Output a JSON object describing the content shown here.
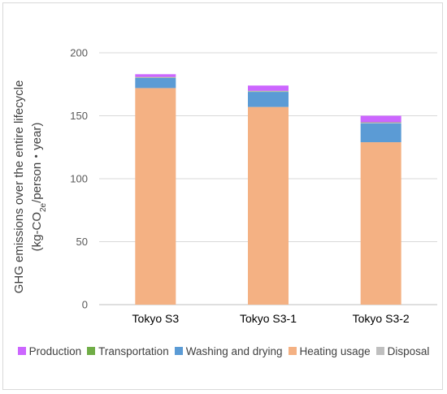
{
  "chart_data": {
    "type": "bar",
    "stacked": true,
    "categories": [
      "Tokyo S3",
      "Tokyo S3-1",
      "Tokyo S3-2"
    ],
    "series": [
      {
        "name": "Heating usage",
        "color": "#f4b183",
        "values": [
          172,
          157,
          129
        ]
      },
      {
        "name": "Washing and drying",
        "color": "#5b9bd5",
        "values": [
          8,
          12,
          15
        ]
      },
      {
        "name": "Disposal",
        "color": "#bfbfbf",
        "values": [
          0.5,
          0.5,
          0.5
        ]
      },
      {
        "name": "Transportation",
        "color": "#70ad47",
        "values": [
          0.3,
          0.3,
          0.3
        ]
      },
      {
        "name": "Production",
        "color": "#cc66ff",
        "values": [
          2.2,
          4.2,
          5.2
        ]
      }
    ],
    "legend_order": [
      "Production",
      "Transportation",
      "Washing and drying",
      "Heating usage",
      "Disposal"
    ],
    "ylim": [
      0,
      200
    ],
    "yticks": [
      0,
      50,
      100,
      150,
      200
    ],
    "ylabel_line1": "GHG emissions over the entire lifecycle",
    "ylabel_line2_prefix": "(kg-CO",
    "ylabel_line2_sub": "2e",
    "ylabel_line2_suffix": "/person・year)",
    "grid": true,
    "legend_position": "bottom"
  }
}
